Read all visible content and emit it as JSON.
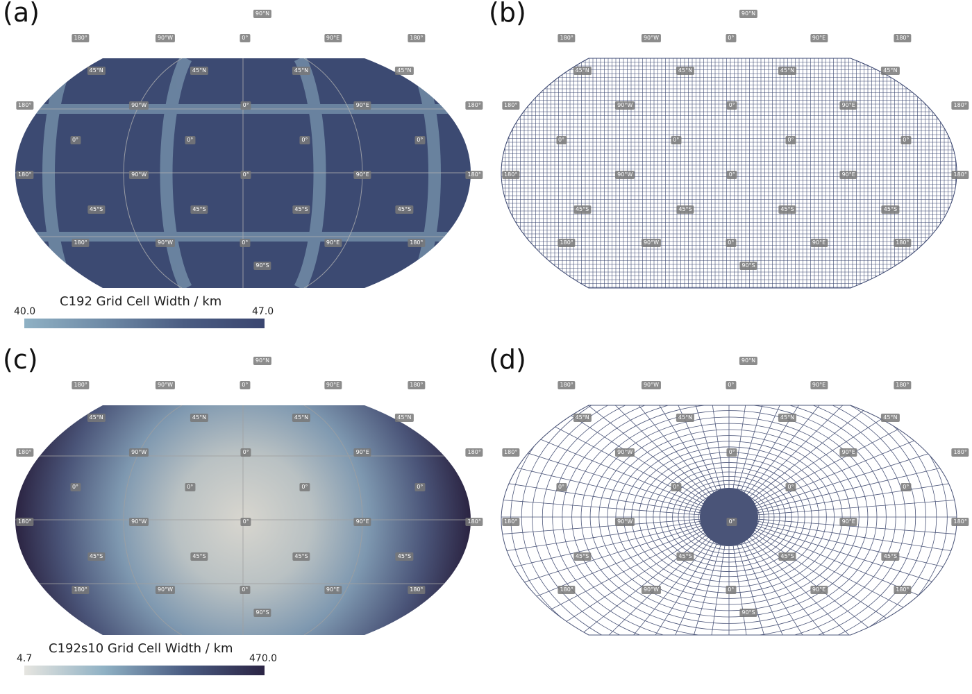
{
  "panels": {
    "a": {
      "letter": "(a)"
    },
    "b": {
      "letter": "(b)"
    },
    "c": {
      "letter": "(c)"
    },
    "d": {
      "letter": "(d)"
    }
  },
  "colorbars": {
    "a": {
      "title": "C192 Grid Cell Width / km",
      "min": "40.0",
      "max": "47.0",
      "colors": [
        "#8fb1c4",
        "#6e8aa6",
        "#4a5c82",
        "#3a4670"
      ]
    },
    "c": {
      "title": "C192s10 Grid Cell Width / km",
      "min": "4.7",
      "max": "470.0",
      "colors": [
        "#e6e5e0",
        "#8fb1c4",
        "#4a5c82",
        "#2b2444"
      ]
    }
  },
  "labels": [
    {
      "text": "90°N",
      "u": 0.54,
      "v": 0.04
    },
    {
      "text": "180°",
      "u": 0.166,
      "v": 0.11
    },
    {
      "text": "90°W",
      "u": 0.34,
      "v": 0.11
    },
    {
      "text": "0°",
      "u": 0.504,
      "v": 0.11
    },
    {
      "text": "90°E",
      "u": 0.685,
      "v": 0.11
    },
    {
      "text": "180°",
      "u": 0.857,
      "v": 0.11
    },
    {
      "text": "45°N",
      "u": 0.198,
      "v": 0.204
    },
    {
      "text": "45°N",
      "u": 0.41,
      "v": 0.204
    },
    {
      "text": "45°N",
      "u": 0.62,
      "v": 0.204
    },
    {
      "text": "45°N",
      "u": 0.832,
      "v": 0.204
    },
    {
      "text": "180°",
      "u": 0.051,
      "v": 0.304
    },
    {
      "text": "90°W",
      "u": 0.286,
      "v": 0.304
    },
    {
      "text": "0°",
      "u": 0.506,
      "v": 0.304
    },
    {
      "text": "90°E",
      "u": 0.746,
      "v": 0.304
    },
    {
      "text": "180°",
      "u": 0.976,
      "v": 0.304
    },
    {
      "text": "0°",
      "u": 0.155,
      "v": 0.404
    },
    {
      "text": "0°",
      "u": 0.391,
      "v": 0.404
    },
    {
      "text": "0°",
      "u": 0.627,
      "v": 0.404
    },
    {
      "text": "0°",
      "u": 0.864,
      "v": 0.404
    },
    {
      "text": "180°",
      "u": 0.051,
      "v": 0.504
    },
    {
      "text": "90°W",
      "u": 0.286,
      "v": 0.504
    },
    {
      "text": "0°",
      "u": 0.506,
      "v": 0.504
    },
    {
      "text": "90°E",
      "u": 0.746,
      "v": 0.504
    },
    {
      "text": "180°",
      "u": 0.976,
      "v": 0.504
    },
    {
      "text": "45°S",
      "u": 0.198,
      "v": 0.604
    },
    {
      "text": "45°S",
      "u": 0.41,
      "v": 0.604
    },
    {
      "text": "45°S",
      "u": 0.62,
      "v": 0.604
    },
    {
      "text": "45°S",
      "u": 0.832,
      "v": 0.604
    },
    {
      "text": "180°",
      "u": 0.166,
      "v": 0.7
    },
    {
      "text": "90°W",
      "u": 0.34,
      "v": 0.7
    },
    {
      "text": "0°",
      "u": 0.504,
      "v": 0.7
    },
    {
      "text": "90°E",
      "u": 0.685,
      "v": 0.7
    },
    {
      "text": "180°",
      "u": 0.857,
      "v": 0.7
    },
    {
      "text": "90°S",
      "u": 0.54,
      "v": 0.766
    }
  ]
}
